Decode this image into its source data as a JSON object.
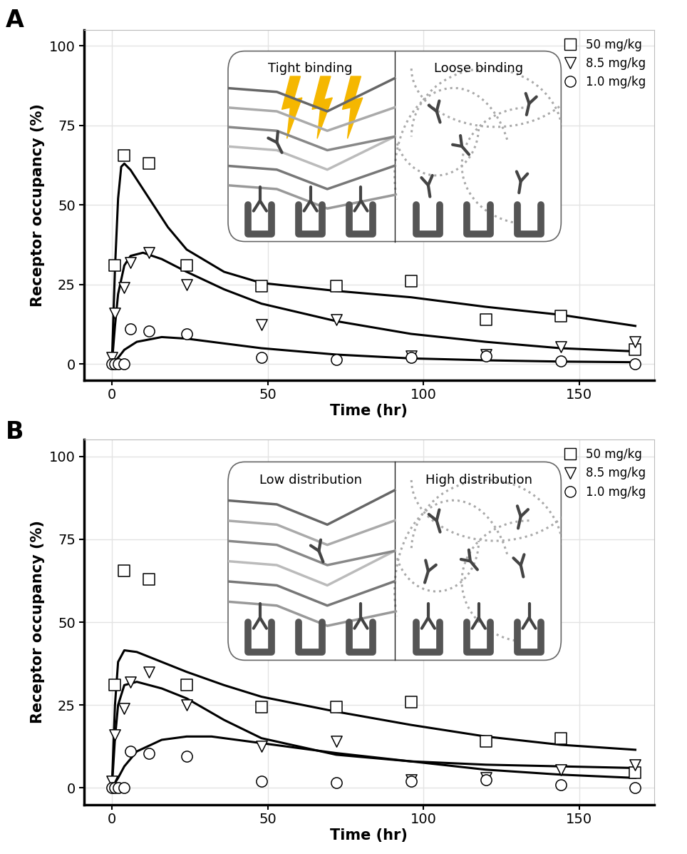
{
  "chart_data": [
    {
      "type": "scatter",
      "panel_label": "A",
      "xlabel": "Time (hr)",
      "ylabel": "Receptor occupancy (%)",
      "xlim": [
        -9,
        174
      ],
      "xticks": [
        0,
        50,
        100,
        150
      ],
      "ylim": [
        -5,
        105
      ],
      "yticks": [
        0,
        25,
        50,
        75,
        100
      ],
      "grid": true,
      "legend": "upper right",
      "inset_labels": [
        "Tight binding",
        "Loose binding"
      ],
      "series": [
        {
          "name": "50 mg/kg",
          "type": "scatter",
          "marker": "square",
          "color": "#000000",
          "x": [
            1,
            4,
            12,
            24,
            48,
            72,
            96,
            120,
            144,
            168
          ],
          "values": [
            31,
            65.5,
            63,
            31,
            24.5,
            24.5,
            26,
            14,
            15,
            4.5
          ]
        },
        {
          "name": "8.5 mg/kg",
          "type": "scatter",
          "marker": "triangle_down",
          "color": "#000000",
          "x": [
            0,
            1,
            4,
            6,
            12,
            24,
            48,
            72,
            96,
            120,
            144,
            168
          ],
          "values": [
            2,
            16,
            24,
            32,
            35,
            25,
            12.5,
            14,
            2.5,
            3,
            5.5,
            7
          ]
        },
        {
          "name": "1.0 mg/kg",
          "type": "scatter",
          "marker": "circle",
          "color": "#000000",
          "x": [
            0,
            1,
            2,
            4,
            6,
            12,
            24,
            48,
            72,
            96,
            120,
            144,
            168
          ],
          "values": [
            0,
            0,
            0,
            0,
            11,
            10.5,
            9.5,
            2,
            1.5,
            2,
            2.5,
            1,
            0
          ]
        },
        {
          "type": "line",
          "color": "#000000",
          "x": [
            0,
            1,
            2,
            3,
            4,
            6,
            8,
            12,
            18,
            24,
            36,
            48,
            72,
            96,
            120,
            144,
            168
          ],
          "values": [
            0,
            30,
            52,
            62,
            63,
            61,
            58,
            52,
            43,
            36,
            29,
            25.5,
            23,
            21,
            18,
            15.5,
            12
          ]
        },
        {
          "type": "line",
          "color": "#000000",
          "x": [
            0,
            1,
            2,
            4,
            6,
            10,
            16,
            24,
            36,
            48,
            72,
            96,
            120,
            144,
            168
          ],
          "values": [
            0,
            12,
            22,
            31,
            34,
            35,
            33,
            29,
            23.5,
            19,
            13.5,
            9.5,
            7,
            5,
            4
          ]
        },
        {
          "type": "line",
          "color": "#000000",
          "x": [
            0,
            2,
            4,
            8,
            16,
            24,
            48,
            72,
            96,
            120,
            144,
            168
          ],
          "values": [
            0,
            2,
            4.5,
            7,
            8.5,
            8,
            5,
            3,
            1.8,
            1.2,
            0.8,
            0.6
          ]
        }
      ]
    },
    {
      "type": "scatter",
      "panel_label": "B",
      "xlabel": "Time (hr)",
      "ylabel": "Receptor occupancy (%)",
      "xlim": [
        -9,
        174
      ],
      "xticks": [
        0,
        50,
        100,
        150
      ],
      "ylim": [
        -5,
        105
      ],
      "yticks": [
        0,
        25,
        50,
        75,
        100
      ],
      "grid": true,
      "legend": "upper right",
      "inset_labels": [
        "Low distribution",
        "High distribution"
      ],
      "series": [
        {
          "name": "50 mg/kg",
          "type": "scatter",
          "marker": "square",
          "color": "#000000",
          "x": [
            1,
            4,
            12,
            24,
            48,
            72,
            96,
            120,
            144,
            168
          ],
          "values": [
            31,
            65.5,
            63,
            31,
            24.5,
            24.5,
            26,
            14,
            15,
            4.5
          ]
        },
        {
          "name": "8.5 mg/kg",
          "type": "scatter",
          "marker": "triangle_down",
          "color": "#000000",
          "x": [
            0,
            1,
            4,
            6,
            12,
            24,
            48,
            72,
            96,
            120,
            144,
            168
          ],
          "values": [
            2,
            16,
            24,
            32,
            35,
            25,
            12.5,
            14,
            2.5,
            3,
            5.5,
            7
          ]
        },
        {
          "name": "1.0 mg/kg",
          "type": "scatter",
          "marker": "circle",
          "color": "#000000",
          "x": [
            0,
            1,
            2,
            4,
            6,
            12,
            24,
            48,
            72,
            96,
            120,
            144,
            168
          ],
          "values": [
            0,
            0,
            0,
            0,
            11,
            10.5,
            9.5,
            2,
            1.5,
            2,
            2.5,
            1,
            0
          ]
        },
        {
          "type": "line",
          "color": "#000000",
          "x": [
            0,
            1,
            2,
            4,
            8,
            16,
            24,
            36,
            48,
            72,
            96,
            120,
            144,
            168
          ],
          "values": [
            0,
            25,
            38,
            41.5,
            41,
            38,
            35,
            31,
            27.5,
            23,
            19,
            15.5,
            13,
            11.5
          ]
        },
        {
          "type": "line",
          "color": "#000000",
          "x": [
            0,
            1,
            2,
            4,
            8,
            16,
            24,
            36,
            48,
            72,
            96,
            120,
            144,
            168
          ],
          "values": [
            0,
            15,
            25,
            31,
            32,
            30,
            27,
            20.5,
            15,
            10,
            8,
            7,
            6.5,
            6
          ]
        },
        {
          "type": "line",
          "color": "#000000",
          "x": [
            0,
            2,
            4,
            8,
            16,
            24,
            32,
            48,
            72,
            96,
            120,
            144,
            168
          ],
          "values": [
            0,
            3,
            6.5,
            11,
            14.5,
            15.5,
            15.5,
            13.5,
            10.5,
            8,
            5.5,
            4,
            3
          ]
        }
      ]
    }
  ]
}
